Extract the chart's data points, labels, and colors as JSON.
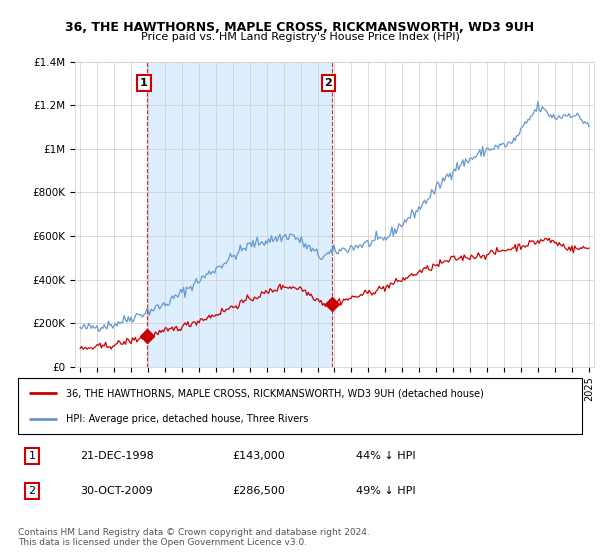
{
  "title": "36, THE HAWTHORNS, MAPLE CROSS, RICKMANSWORTH, WD3 9UH",
  "subtitle": "Price paid vs. HM Land Registry's House Price Index (HPI)",
  "legend_line1": "36, THE HAWTHORNS, MAPLE CROSS, RICKMANSWORTH, WD3 9UH (detached house)",
  "legend_line2": "HPI: Average price, detached house, Three Rivers",
  "transaction1_date": "21-DEC-1998",
  "transaction1_price": "£143,000",
  "transaction1_hpi": "44% ↓ HPI",
  "transaction2_date": "30-OCT-2009",
  "transaction2_price": "£286,500",
  "transaction2_hpi": "49% ↓ HPI",
  "footnote": "Contains HM Land Registry data © Crown copyright and database right 2024.\nThis data is licensed under the Open Government Licence v3.0.",
  "red_color": "#cc0000",
  "blue_color": "#6699cc",
  "shade_color": "#ddeeff",
  "marker1_x": 1998.97,
  "marker1_y": 143000,
  "marker2_x": 2009.83,
  "marker2_y": 286500,
  "ylim": [
    0,
    1400000
  ],
  "xlim_start": 1994.7,
  "xlim_end": 2025.3
}
